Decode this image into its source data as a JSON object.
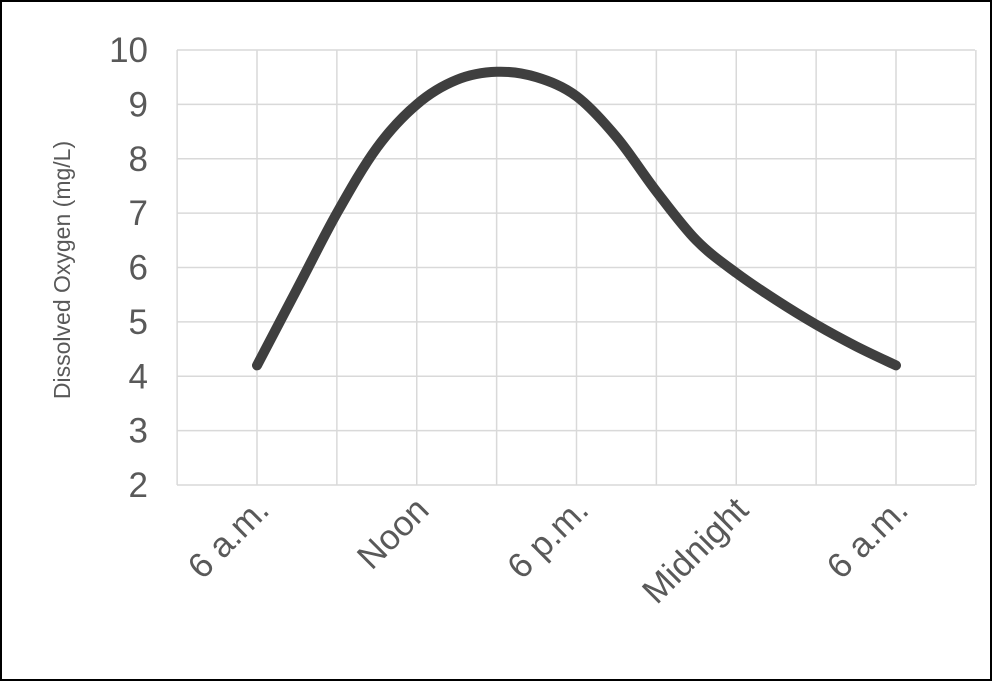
{
  "chart_data": {
    "type": "line",
    "title": "",
    "xlabel": "",
    "ylabel": "Dissolved Oxygen  (mg/L)",
    "ylim": [
      2,
      10
    ],
    "yticks": [
      "2",
      "3",
      "4",
      "5",
      "6",
      "7",
      "8",
      "9",
      "10"
    ],
    "categories": [
      "6 a.m.",
      "Noon",
      "6 p.m.",
      "Midnight",
      "6 a.m."
    ],
    "grid": true,
    "legend": "none",
    "smooth": true,
    "series": [
      {
        "color": "#3f3f3f",
        "x": [
          0,
          0.5,
          1,
          1.5,
          2,
          2.5,
          3,
          3.5,
          4,
          4.5,
          5,
          5.5,
          6,
          6.5,
          7,
          7.5,
          8
        ],
        "values": [
          4.2,
          5.6,
          7.0,
          8.2,
          9.0,
          9.45,
          9.6,
          9.5,
          9.15,
          8.4,
          7.4,
          6.5,
          5.9,
          5.4,
          4.95,
          4.55,
          4.2
        ]
      }
    ]
  }
}
